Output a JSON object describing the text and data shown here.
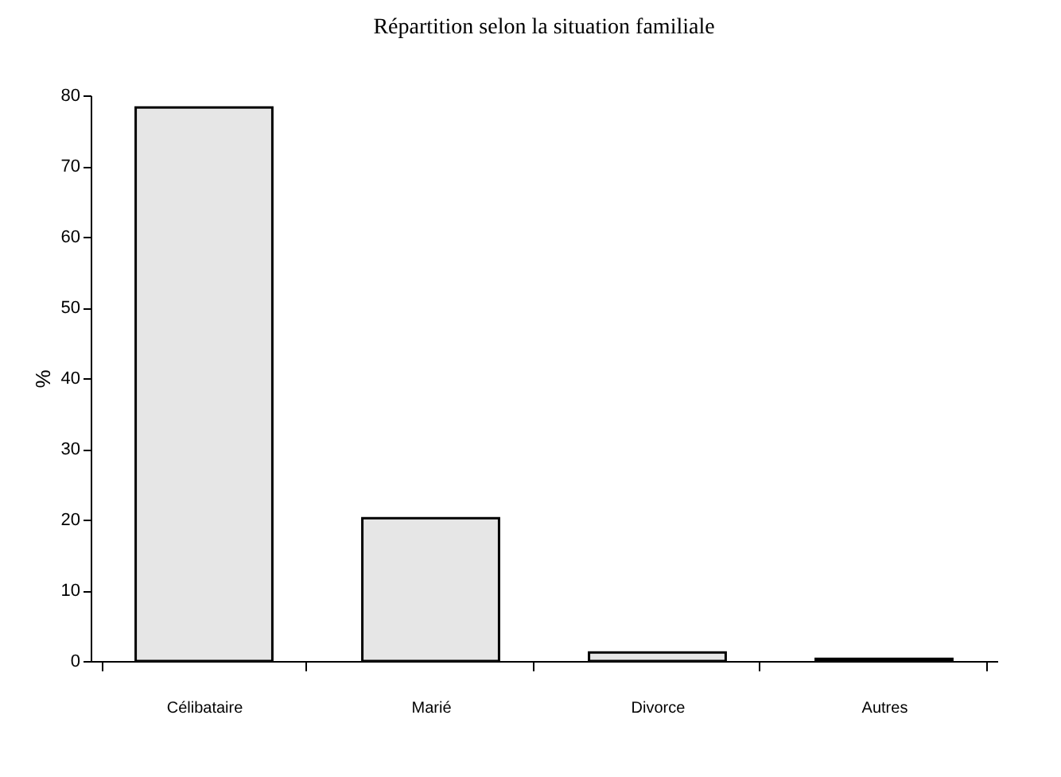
{
  "chart_data": {
    "type": "bar",
    "title": "Répartition selon la situation familiale",
    "ylabel": "%",
    "categories": [
      "Célibataire",
      "Marié",
      "Divorce",
      "Autres"
    ],
    "values": [
      78.3,
      20.2,
      1.2,
      0.3
    ],
    "color": "#e6e6e6",
    "ylim": [
      0,
      80
    ],
    "yticks": [
      0,
      10,
      20,
      30,
      40,
      50,
      60,
      70,
      80
    ],
    "grid": false
  }
}
